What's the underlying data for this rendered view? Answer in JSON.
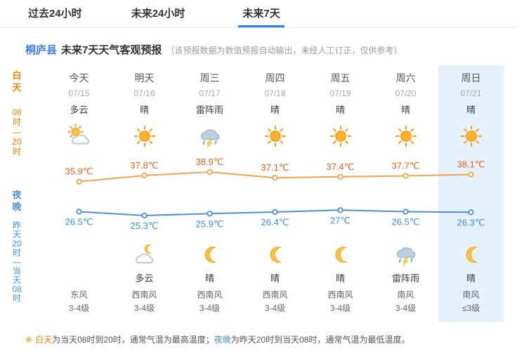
{
  "tabs": [
    {
      "label": "过去24小时",
      "active": false
    },
    {
      "label": "未来24小时",
      "active": false
    },
    {
      "label": "未来7天",
      "active": true
    }
  ],
  "header": {
    "county": "桐庐县",
    "title": "未来7天天气客观预报",
    "note": "（该预报数据为数值预报自动输出，未经人工订正，仅供参考）"
  },
  "sidebar": {
    "day_label": "白天",
    "day_time": "08时—20时",
    "night_label": "夜晚",
    "night_time": "昨天20时—当天08时"
  },
  "columns": [
    {
      "day": "今天",
      "date": "07/15",
      "day_weather": "多云",
      "day_icon": "cloud-sun",
      "night_weather": "",
      "night_icon": "",
      "wind_dir": "东风",
      "wind_level": "3-4级",
      "highlight": false
    },
    {
      "day": "明天",
      "date": "07/16",
      "day_weather": "晴",
      "day_icon": "sun",
      "night_weather": "多云",
      "night_icon": "cloud-moon",
      "wind_dir": "西南风",
      "wind_level": "3-4级",
      "highlight": false
    },
    {
      "day": "周三",
      "date": "07/17",
      "day_weather": "雷阵雨",
      "day_icon": "thunderstorm",
      "night_weather": "晴",
      "night_icon": "moon",
      "wind_dir": "西南风",
      "wind_level": "3-4级",
      "highlight": false
    },
    {
      "day": "周四",
      "date": "07/18",
      "day_weather": "晴",
      "day_icon": "sun",
      "night_weather": "晴",
      "night_icon": "moon",
      "wind_dir": "西南风",
      "wind_level": "3-4级",
      "highlight": false
    },
    {
      "day": "周五",
      "date": "07/19",
      "day_weather": "晴",
      "day_icon": "sun",
      "night_weather": "晴",
      "night_icon": "moon",
      "wind_dir": "西南风",
      "wind_level": "3-4级",
      "highlight": false
    },
    {
      "day": "周六",
      "date": "07/20",
      "day_weather": "晴",
      "day_icon": "sun",
      "night_weather": "雷阵雨",
      "night_icon": "thunderstorm",
      "wind_dir": "南风",
      "wind_level": "3-4级",
      "highlight": false
    },
    {
      "day": "周日",
      "date": "07/21",
      "day_weather": "晴",
      "day_icon": "sun",
      "night_weather": "晴",
      "night_icon": "moon",
      "wind_dir": "南风",
      "wind_level": "≤3级",
      "highlight": true
    }
  ],
  "chart_data": {
    "type": "line",
    "categories": [
      "今天 07/15",
      "明天 07/16",
      "周三 07/17",
      "周四 07/18",
      "周五 07/19",
      "周六 07/20",
      "周日 07/21"
    ],
    "series": [
      {
        "name": "白天最高气温",
        "unit": "℃",
        "color": "#f7a14a",
        "label_color": "#e8611a",
        "values": [
          35.9,
          37.8,
          38.9,
          37.1,
          37.4,
          37.7,
          38.1
        ]
      },
      {
        "name": "夜晚最低气温",
        "unit": "℃",
        "color": "#4a90d9",
        "label_color": "#3a8ee6",
        "values": [
          26.5,
          25.3,
          25.9,
          26.4,
          27,
          26.5,
          26.3
        ]
      }
    ],
    "ylim": [
      25.3,
      38.9
    ],
    "grid": false,
    "legend_position": "none",
    "marker": "open-circle"
  },
  "footer": {
    "marker": "※",
    "day_term": "白天",
    "day_text": "为当天08时到20时，通常气温为最高温度；",
    "night_term": "夜晚",
    "night_text": "为昨天20时到当天08时，通常气温为最低温度。"
  },
  "colors": {
    "accent_blue": "#3d7fd9",
    "day_orange": "#f08300",
    "night_blue": "#4a90d9",
    "high_temp_label": "#e8611a",
    "low_temp_label": "#3a8ee6",
    "highlight_column_bg": "#e6f2fb",
    "tab_active_underline": "#2b7cee"
  }
}
